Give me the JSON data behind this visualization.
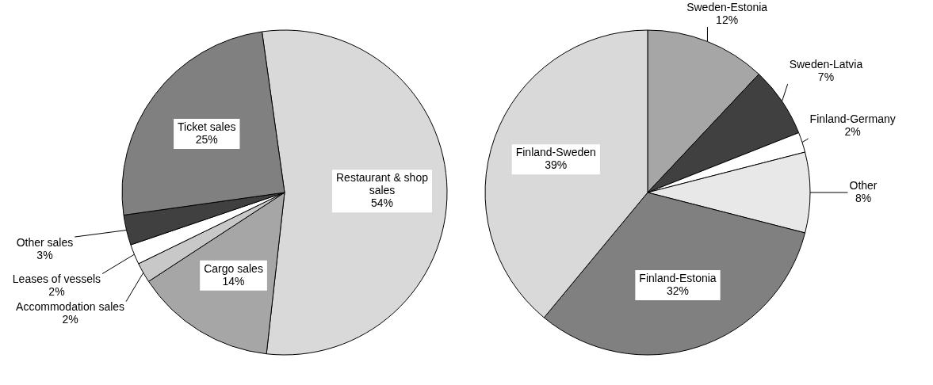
{
  "chart_data": [
    {
      "type": "pie",
      "categories": [
        "Restaurant & shop sales",
        "Cargo sales",
        "Accommodation sales",
        "Leases of vessels",
        "Other sales",
        "Ticket sales"
      ],
      "values": [
        54,
        14,
        2,
        2,
        3,
        25
      ],
      "colors": [
        "#d9d9d9",
        "#a6a6a6",
        "#c8c8c8",
        "#ffffff",
        "#404040",
        "#808080"
      ],
      "value_labels": [
        "54%",
        "14%",
        "2%",
        "2%",
        "3%",
        "25%"
      ]
    },
    {
      "type": "pie",
      "categories": [
        "Sweden-Estonia",
        "Sweden-Latvia",
        "Finland-Germany",
        "Other",
        "Finland-Estonia",
        "Finland-Sweden"
      ],
      "values": [
        12,
        7,
        2,
        8,
        32,
        39
      ],
      "colors": [
        "#a6a6a6",
        "#404040",
        "#ffffff",
        "#e8e8e8",
        "#808080",
        "#d9d9d9"
      ],
      "value_labels": [
        "12%",
        "7%",
        "2%",
        "8%",
        "32%",
        "39%"
      ]
    }
  ]
}
